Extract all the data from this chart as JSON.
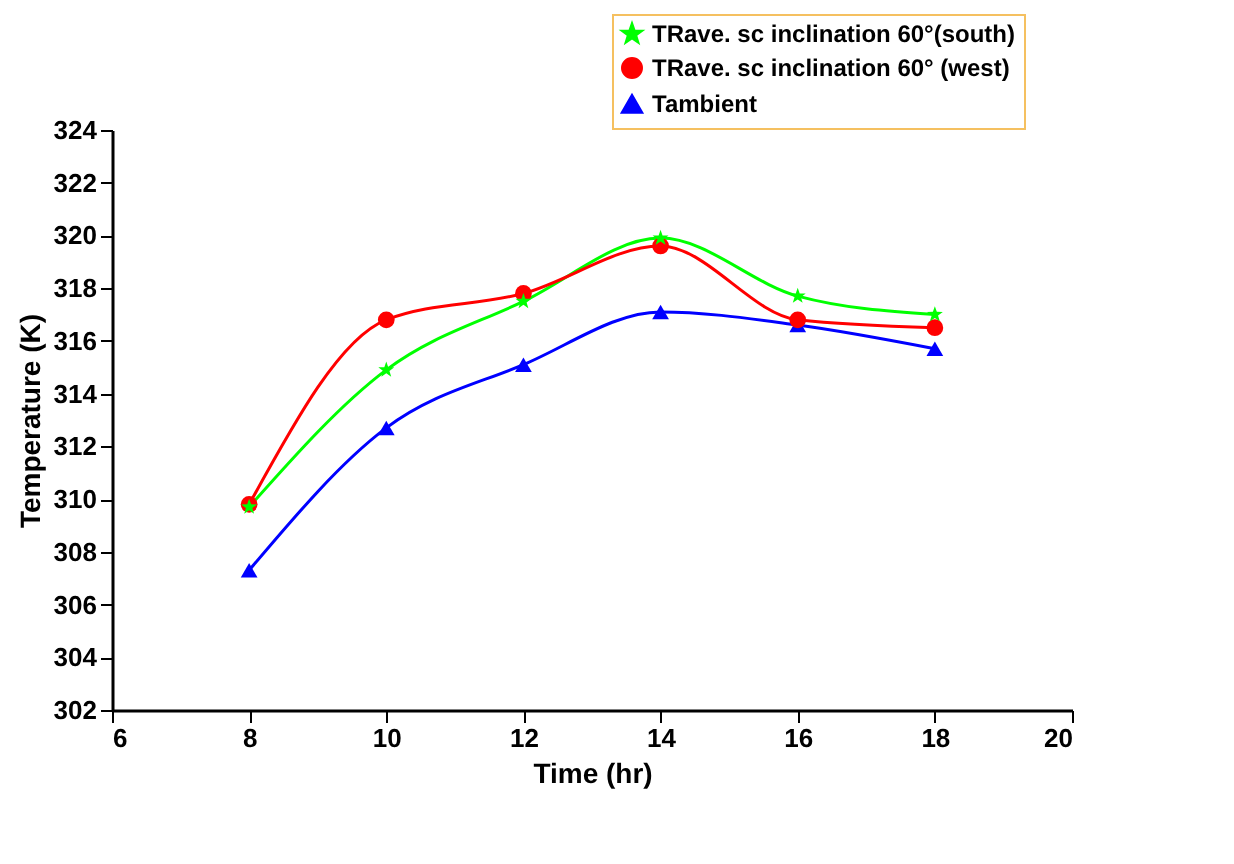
{
  "chart_data": {
    "type": "line",
    "xlabel": "Time (hr)",
    "ylabel": "Temperature (K)",
    "x": [
      8,
      10,
      12,
      14,
      16,
      18
    ],
    "series": [
      {
        "name": "TRave. sc inclination 60°(south)",
        "color": "#00ff00",
        "marker": "star",
        "values": [
          309.7,
          314.9,
          317.5,
          319.9,
          317.7,
          317.0
        ]
      },
      {
        "name": "TRave. sc inclination 60° (west)",
        "color": "#ff0000",
        "marker": "circle",
        "values": [
          309.8,
          316.8,
          317.8,
          319.6,
          316.8,
          316.5
        ]
      },
      {
        "name": "Tambient",
        "color": "#0000ff",
        "marker": "triangle",
        "values": [
          307.3,
          312.7,
          315.1,
          317.1,
          316.6,
          315.7
        ]
      }
    ],
    "xlim": [
      6,
      20
    ],
    "xticks": [
      6,
      8,
      10,
      12,
      14,
      16,
      18,
      20
    ],
    "ylim": [
      302,
      324
    ],
    "yticks": [
      302,
      304,
      306,
      308,
      310,
      312,
      314,
      316,
      318,
      320,
      322,
      324
    ],
    "grid": false,
    "legend": "top right",
    "line_style": "solid"
  }
}
